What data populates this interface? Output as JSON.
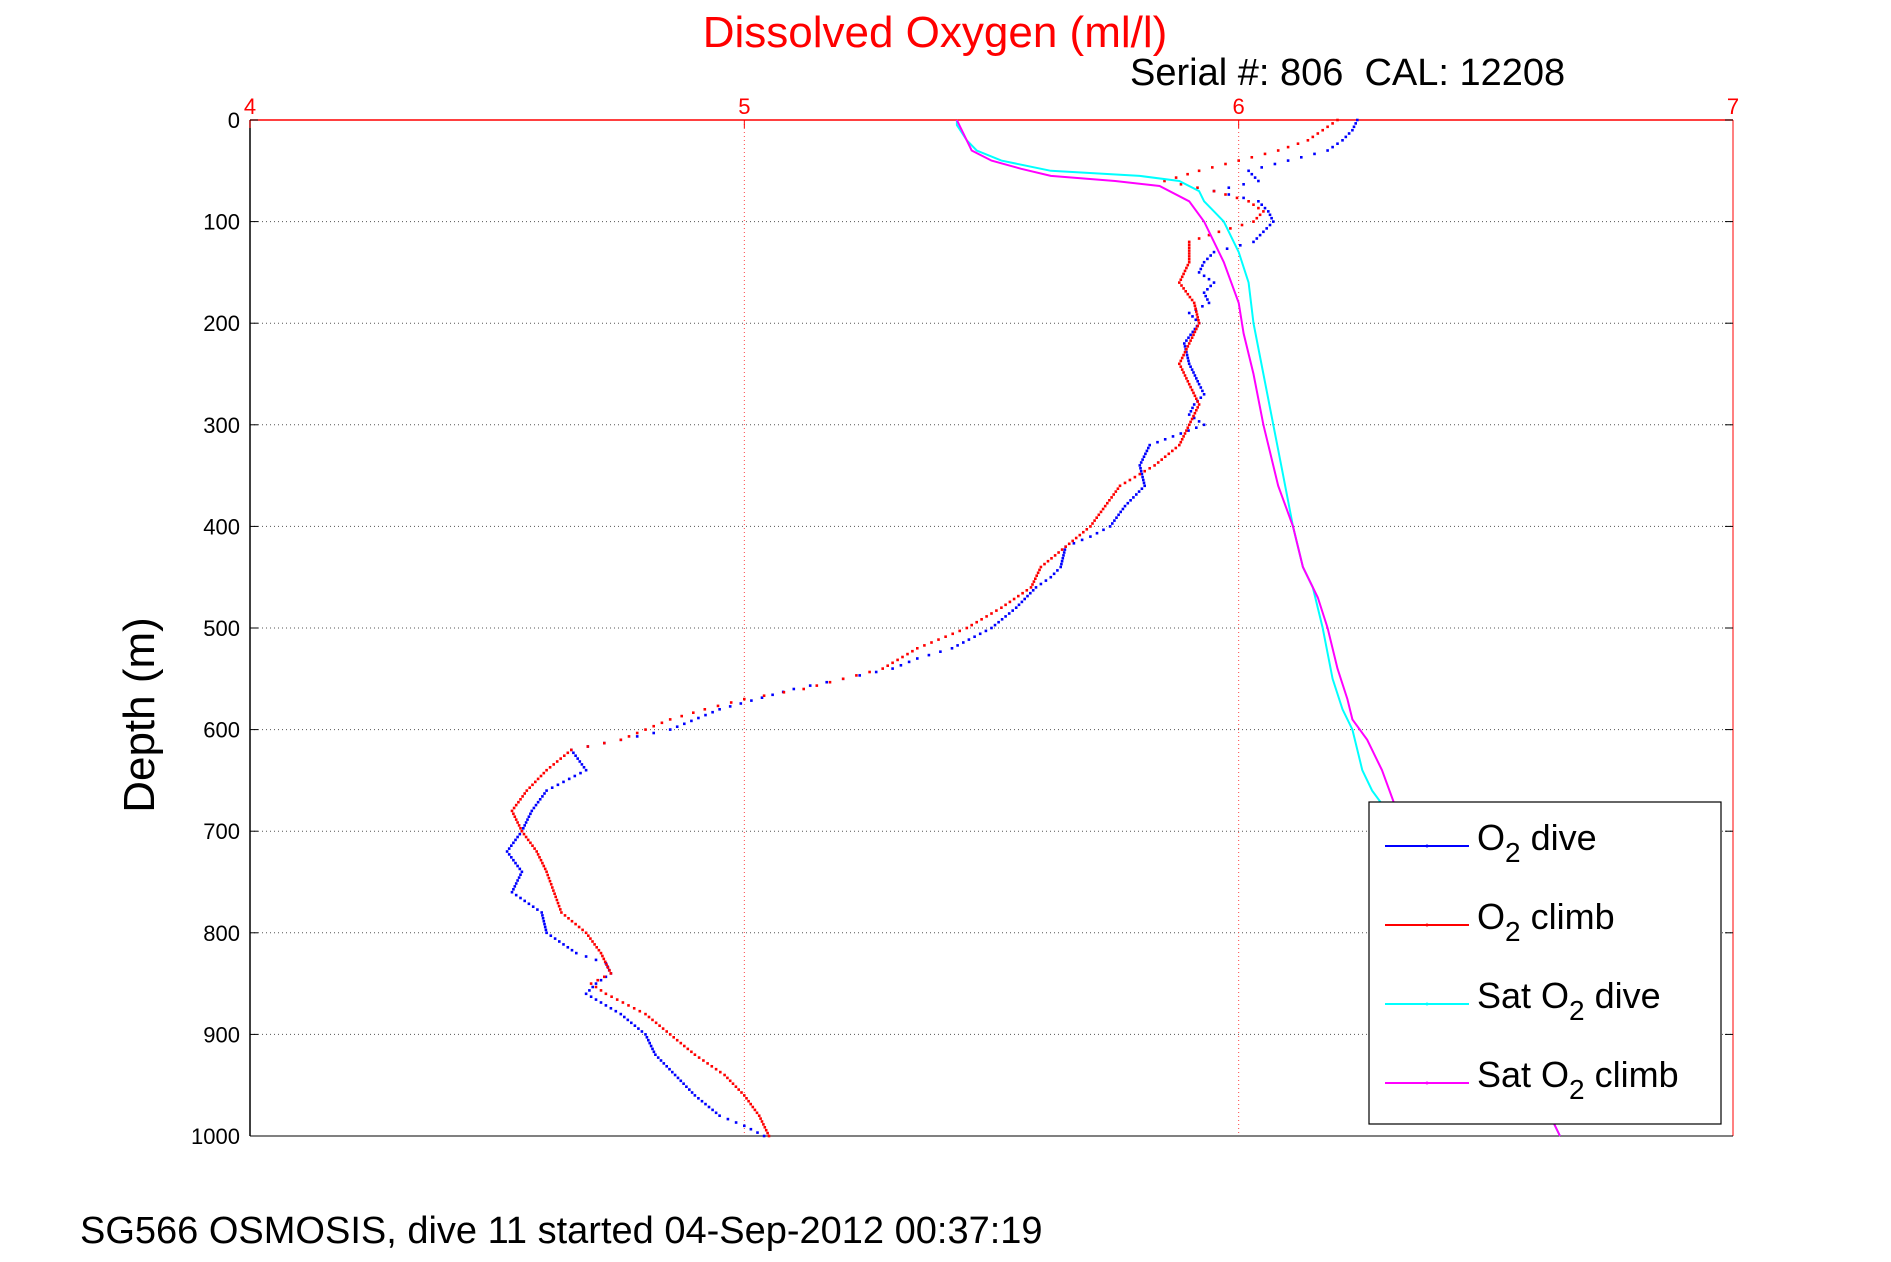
{
  "chart_data": {
    "type": "line",
    "title": "Dissolved Oxygen (ml/l)",
    "subtitle": "Serial #: 806  CAL: 12208",
    "footer": "SG566 OSMOSIS, dive 11 started 04-Sep-2012 00:37:19",
    "xlabel": "",
    "ylabel": "Depth (m)",
    "xlim": [
      4,
      7
    ],
    "ylim": [
      0,
      1000
    ],
    "y_reversed": true,
    "x_axis_position": "top",
    "x_ticks": [
      4,
      5,
      6,
      7
    ],
    "y_ticks": [
      0,
      100,
      200,
      300,
      400,
      500,
      600,
      700,
      800,
      900,
      1000
    ],
    "grid": true,
    "legend_position": "bottom-right",
    "colors": {
      "axis_top": "#ff0000",
      "grid_x": "#ff4444",
      "grid_y": "#555555"
    },
    "series": [
      {
        "name": "O2 dive",
        "legend": {
          "base": "O",
          "sub": "2",
          "rest": " dive"
        },
        "color": "#0000ff",
        "style": "dots",
        "x": [
          6.24,
          6.23,
          6.21,
          6.18,
          6.1,
          6.02,
          6.04,
          5.95,
          6.04,
          6.06,
          6.07,
          6.05,
          6.03,
          5.95,
          5.93,
          5.92,
          5.95,
          5.93,
          5.94,
          5.9,
          5.92,
          5.89,
          5.9,
          5.92,
          5.93,
          5.91,
          5.9,
          5.93,
          5.82,
          5.8,
          5.81,
          5.77,
          5.74,
          5.7,
          5.65,
          5.64,
          5.62,
          5.59,
          5.55,
          5.5,
          5.42,
          5.35,
          5.3,
          5.2,
          5.1,
          4.95,
          4.85,
          4.75,
          4.65,
          4.68,
          4.6,
          4.57,
          4.55,
          4.52,
          4.55,
          4.53,
          4.59,
          4.6,
          4.66,
          4.72,
          4.73,
          4.7,
          4.68,
          4.75,
          4.8,
          4.82,
          4.86,
          4.9,
          4.95,
          5.0,
          5.04
        ],
        "y": [
          0,
          10,
          20,
          30,
          40,
          50,
          60,
          70,
          80,
          90,
          100,
          110,
          120,
          130,
          140,
          150,
          160,
          170,
          180,
          190,
          200,
          220,
          240,
          260,
          270,
          280,
          290,
          300,
          320,
          340,
          360,
          380,
          400,
          410,
          420,
          440,
          450,
          460,
          480,
          500,
          520,
          530,
          540,
          550,
          560,
          580,
          600,
          610,
          620,
          640,
          660,
          680,
          700,
          720,
          740,
          760,
          780,
          800,
          820,
          830,
          840,
          850,
          860,
          880,
          900,
          920,
          940,
          960,
          980,
          990,
          1000
        ]
      },
      {
        "name": "O2 climb",
        "legend": {
          "base": "O",
          "sub": "2",
          "rest": " climb"
        },
        "color": "#ff0000",
        "style": "dots",
        "x": [
          6.2,
          6.17,
          6.14,
          6.08,
          6.0,
          5.92,
          5.85,
          5.95,
          6.02,
          6.05,
          6.03,
          5.96,
          5.9,
          5.9,
          5.88,
          5.91,
          5.92,
          5.9,
          5.88,
          5.9,
          5.92,
          5.9,
          5.88,
          5.83,
          5.76,
          5.73,
          5.7,
          5.65,
          5.6,
          5.58,
          5.52,
          5.45,
          5.35,
          5.28,
          5.2,
          5.12,
          5.0,
          4.92,
          4.85,
          4.8,
          4.75,
          4.65,
          4.6,
          4.56,
          4.53,
          4.55,
          4.58,
          4.6,
          4.63,
          4.68,
          4.71,
          4.73,
          4.69,
          4.72,
          4.8,
          4.85,
          4.9,
          4.96,
          5.0,
          5.03,
          5.05
        ],
        "y": [
          0,
          10,
          20,
          30,
          40,
          50,
          60,
          70,
          80,
          90,
          100,
          110,
          120,
          140,
          160,
          180,
          200,
          220,
          240,
          260,
          280,
          300,
          320,
          340,
          360,
          380,
          400,
          420,
          440,
          460,
          480,
          500,
          520,
          540,
          550,
          560,
          570,
          580,
          590,
          600,
          610,
          620,
          640,
          660,
          680,
          700,
          720,
          740,
          780,
          800,
          820,
          840,
          850,
          860,
          880,
          900,
          920,
          940,
          960,
          980,
          1000
        ]
      },
      {
        "name": "Sat O2 dive",
        "legend": {
          "base": "Sat O",
          "sub": "2",
          "rest": " dive"
        },
        "color": "#00ffff",
        "style": "line",
        "x": [
          5.43,
          5.43,
          5.45,
          5.47,
          5.52,
          5.62,
          5.8,
          5.88,
          5.92,
          5.93,
          5.95,
          5.97,
          6.0,
          6.02,
          6.03,
          6.05,
          6.07,
          6.09,
          6.11,
          6.13,
          6.15,
          6.17,
          6.19,
          6.21,
          6.23,
          6.25,
          6.27,
          6.3,
          6.35,
          6.4,
          6.45,
          6.5,
          6.55,
          6.6,
          6.65
        ],
        "y": [
          0,
          5,
          20,
          30,
          40,
          50,
          55,
          60,
          70,
          80,
          90,
          100,
          130,
          160,
          200,
          250,
          300,
          350,
          400,
          440,
          460,
          500,
          550,
          580,
          600,
          640,
          660,
          680,
          720,
          760,
          800,
          850,
          900,
          950,
          1000
        ]
      },
      {
        "name": "Sat O2 climb",
        "legend": {
          "base": "Sat O",
          "sub": "2",
          "rest": " climb"
        },
        "color": "#ff00ff",
        "style": "line",
        "x": [
          5.43,
          5.44,
          5.46,
          5.5,
          5.56,
          5.62,
          5.75,
          5.84,
          5.9,
          5.93,
          5.95,
          5.97,
          6.0,
          6.01,
          6.03,
          6.05,
          6.08,
          6.11,
          6.13,
          6.16,
          6.18,
          6.2,
          6.22,
          6.23,
          6.26,
          6.29,
          6.32,
          6.36,
          6.4,
          6.45,
          6.5,
          6.55,
          6.6,
          6.65
        ],
        "y": [
          0,
          10,
          30,
          40,
          48,
          55,
          60,
          65,
          80,
          100,
          120,
          140,
          180,
          210,
          250,
          300,
          360,
          400,
          440,
          470,
          500,
          540,
          570,
          590,
          610,
          640,
          680,
          720,
          760,
          800,
          850,
          900,
          950,
          1000
        ]
      }
    ]
  }
}
